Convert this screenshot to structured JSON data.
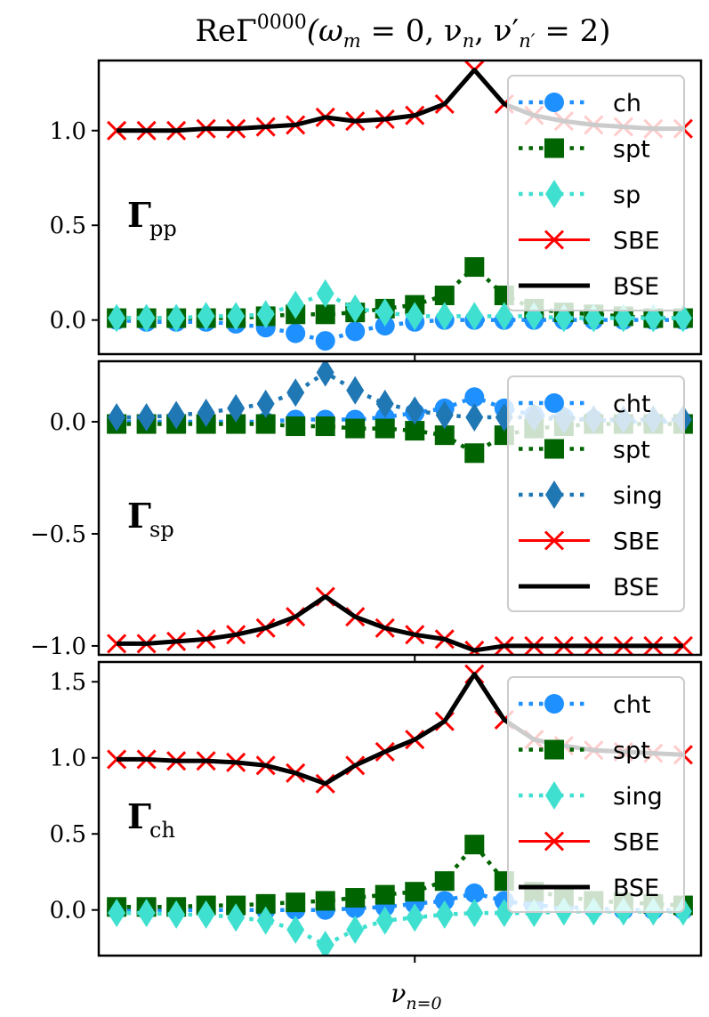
{
  "title": "ReΓ0000(ωm = 0, νn, ν′n′ = 2)",
  "title_parts": {
    "prefix": "ReΓ",
    "sup": "0000",
    "args_open": "(ω",
    "m_sub": "m",
    "eq0": " = 0, ν",
    "n_sub": "n",
    "comma": ", ν′",
    "nprime_sub": "n′",
    "eq2": " = 2)"
  },
  "xlabel": "νn=0",
  "xlabel_parts": {
    "nu": "ν",
    "sub": "n=0"
  },
  "colors": {
    "ch": "#1e90ff",
    "cht": "#1e90ff",
    "spt": "#006400",
    "sp": "#40e0d0",
    "sing_blue": "#1f77b4",
    "sing_cyan": "#40e0d0",
    "SBE": "#ff0000",
    "BSE": "#000000"
  },
  "chart_data": [
    {
      "type": "line",
      "panel_label": "Γ",
      "panel_sub": "pp",
      "x": [
        -10,
        -9,
        -8,
        -7,
        -6,
        -5,
        -4,
        -3,
        -2,
        -1,
        0,
        1,
        2,
        3,
        4,
        5,
        6,
        7,
        8,
        9
      ],
      "x_center_tick": 0,
      "ylim": [
        -0.18,
        1.37
      ],
      "yticks": [
        0.0,
        0.5,
        1.0
      ],
      "ytick_labels": [
        "0.0",
        "0.5",
        "1.0"
      ],
      "series": [
        {
          "name": "ch",
          "marker": "circle",
          "line": "dotted",
          "color": "#1e90ff",
          "values": [
            0.0,
            -0.01,
            -0.01,
            -0.01,
            -0.02,
            -0.04,
            -0.07,
            -0.11,
            -0.06,
            -0.03,
            -0.01,
            0.0,
            0.0,
            0.0,
            0.0,
            0.0,
            0.0,
            0.0,
            0.0,
            0.0
          ]
        },
        {
          "name": "spt",
          "marker": "square",
          "line": "dotted",
          "color": "#006400",
          "values": [
            0.01,
            0.01,
            0.01,
            0.01,
            0.01,
            0.02,
            0.03,
            0.03,
            0.04,
            0.06,
            0.08,
            0.13,
            0.28,
            0.13,
            0.06,
            0.04,
            0.03,
            0.02,
            0.01,
            0.01
          ]
        },
        {
          "name": "sp",
          "marker": "diamond",
          "line": "dotted",
          "color": "#40e0d0",
          "values": [
            0.01,
            0.01,
            0.01,
            0.02,
            0.02,
            0.03,
            0.08,
            0.14,
            0.06,
            0.04,
            0.02,
            0.02,
            0.02,
            0.02,
            0.02,
            0.01,
            0.01,
            0.01,
            0.01,
            0.01
          ]
        },
        {
          "name": "SBE",
          "marker": "x",
          "line": "solid",
          "color": "#ff0000",
          "values": [
            1.0,
            1.0,
            1.0,
            1.01,
            1.01,
            1.02,
            1.03,
            1.07,
            1.05,
            1.06,
            1.08,
            1.14,
            1.32,
            1.14,
            1.08,
            1.05,
            1.03,
            1.02,
            1.01,
            1.01
          ]
        },
        {
          "name": "BSE",
          "marker": "none",
          "line": "solid",
          "color": "#000000",
          "values": [
            1.0,
            1.0,
            1.0,
            1.01,
            1.01,
            1.02,
            1.03,
            1.07,
            1.05,
            1.06,
            1.08,
            1.14,
            1.32,
            1.14,
            1.08,
            1.05,
            1.03,
            1.02,
            1.01,
            1.01
          ]
        }
      ],
      "legend": [
        "ch",
        "spt",
        "sp",
        "SBE",
        "BSE"
      ],
      "legend_loc": "upper right"
    },
    {
      "type": "line",
      "panel_label": "Γ",
      "panel_sub": "sp",
      "x": [
        -10,
        -9,
        -8,
        -7,
        -6,
        -5,
        -4,
        -3,
        -2,
        -1,
        0,
        1,
        2,
        3,
        4,
        5,
        6,
        7,
        8,
        9
      ],
      "x_center_tick": 0,
      "ylim": [
        -1.04,
        0.27
      ],
      "yticks": [
        -1.0,
        -0.5,
        0.0
      ],
      "ytick_labels": [
        "−1.0",
        "−0.5",
        "0.0"
      ],
      "series": [
        {
          "name": "cht",
          "marker": "circle",
          "line": "dotted",
          "color": "#1e90ff",
          "values": [
            0.0,
            0.0,
            0.0,
            0.0,
            0.0,
            0.0,
            0.01,
            0.01,
            0.01,
            0.02,
            0.04,
            0.06,
            0.11,
            0.06,
            0.03,
            0.02,
            0.01,
            0.0,
            0.0,
            0.0
          ]
        },
        {
          "name": "spt",
          "marker": "square",
          "line": "dotted",
          "color": "#006400",
          "values": [
            -0.01,
            -0.01,
            -0.01,
            -0.01,
            -0.01,
            -0.01,
            -0.02,
            -0.02,
            -0.03,
            -0.03,
            -0.04,
            -0.06,
            -0.14,
            -0.06,
            -0.03,
            -0.02,
            -0.01,
            -0.01,
            -0.01,
            -0.01
          ]
        },
        {
          "name": "sing",
          "marker": "diamond",
          "line": "dotted",
          "color": "#1f77b4",
          "values": [
            0.02,
            0.02,
            0.03,
            0.04,
            0.06,
            0.08,
            0.13,
            0.22,
            0.14,
            0.08,
            0.05,
            0.03,
            0.02,
            0.02,
            0.02,
            0.01,
            0.01,
            0.01,
            0.01,
            0.01
          ]
        },
        {
          "name": "SBE",
          "marker": "x",
          "line": "solid",
          "color": "#ff0000",
          "values": [
            -0.99,
            -0.99,
            -0.98,
            -0.97,
            -0.95,
            -0.92,
            -0.87,
            -0.78,
            -0.87,
            -0.92,
            -0.95,
            -0.97,
            -1.02,
            -1.0,
            -1.0,
            -1.0,
            -1.0,
            -1.0,
            -1.0,
            -1.0
          ]
        },
        {
          "name": "BSE",
          "marker": "none",
          "line": "solid",
          "color": "#000000",
          "values": [
            -0.99,
            -0.99,
            -0.98,
            -0.97,
            -0.95,
            -0.92,
            -0.87,
            -0.78,
            -0.87,
            -0.92,
            -0.95,
            -0.97,
            -1.02,
            -1.0,
            -1.0,
            -1.0,
            -1.0,
            -1.0,
            -1.0,
            -1.0
          ]
        }
      ],
      "legend": [
        "cht",
        "spt",
        "sing",
        "SBE",
        "BSE"
      ],
      "legend_loc": "upper right"
    },
    {
      "type": "line",
      "panel_label": "Γ",
      "panel_sub": "ch",
      "x": [
        -10,
        -9,
        -8,
        -7,
        -6,
        -5,
        -4,
        -3,
        -2,
        -1,
        0,
        1,
        2,
        3,
        4,
        5,
        6,
        7,
        8,
        9
      ],
      "x_center_tick": 0,
      "ylim": [
        -0.3,
        1.63
      ],
      "yticks": [
        0.0,
        0.5,
        1.0,
        1.5
      ],
      "ytick_labels": [
        "0.0",
        "0.5",
        "1.0",
        "1.5"
      ],
      "series": [
        {
          "name": "cht",
          "marker": "circle",
          "line": "dotted",
          "color": "#1e90ff",
          "values": [
            0.0,
            0.0,
            0.0,
            0.0,
            0.0,
            0.0,
            0.0,
            0.0,
            0.01,
            0.02,
            0.04,
            0.06,
            0.11,
            0.06,
            0.03,
            0.02,
            0.01,
            0.0,
            0.0,
            0.0
          ]
        },
        {
          "name": "spt",
          "marker": "square",
          "line": "dotted",
          "color": "#006400",
          "values": [
            0.02,
            0.02,
            0.02,
            0.03,
            0.03,
            0.04,
            0.05,
            0.06,
            0.08,
            0.1,
            0.12,
            0.19,
            0.43,
            0.19,
            0.12,
            0.09,
            0.06,
            0.05,
            0.04,
            0.03
          ]
        },
        {
          "name": "sing",
          "marker": "diamond",
          "line": "dotted",
          "color": "#40e0d0",
          "values": [
            -0.02,
            -0.02,
            -0.03,
            -0.03,
            -0.05,
            -0.07,
            -0.13,
            -0.23,
            -0.13,
            -0.07,
            -0.05,
            -0.03,
            -0.02,
            -0.02,
            -0.02,
            -0.01,
            -0.01,
            -0.01,
            -0.01,
            -0.01
          ]
        },
        {
          "name": "SBE",
          "marker": "x",
          "line": "solid",
          "color": "#ff0000",
          "values": [
            0.99,
            0.99,
            0.98,
            0.98,
            0.97,
            0.95,
            0.9,
            0.83,
            0.95,
            1.04,
            1.12,
            1.24,
            1.55,
            1.25,
            1.12,
            1.08,
            1.05,
            1.04,
            1.03,
            1.02
          ]
        },
        {
          "name": "BSE",
          "marker": "none",
          "line": "solid",
          "color": "#000000",
          "values": [
            0.99,
            0.99,
            0.98,
            0.98,
            0.97,
            0.95,
            0.9,
            0.83,
            0.95,
            1.04,
            1.12,
            1.24,
            1.55,
            1.25,
            1.12,
            1.08,
            1.05,
            1.04,
            1.03,
            1.02
          ]
        }
      ],
      "legend": [
        "cht",
        "spt",
        "sing",
        "SBE",
        "BSE"
      ],
      "legend_loc": "upper right"
    }
  ]
}
